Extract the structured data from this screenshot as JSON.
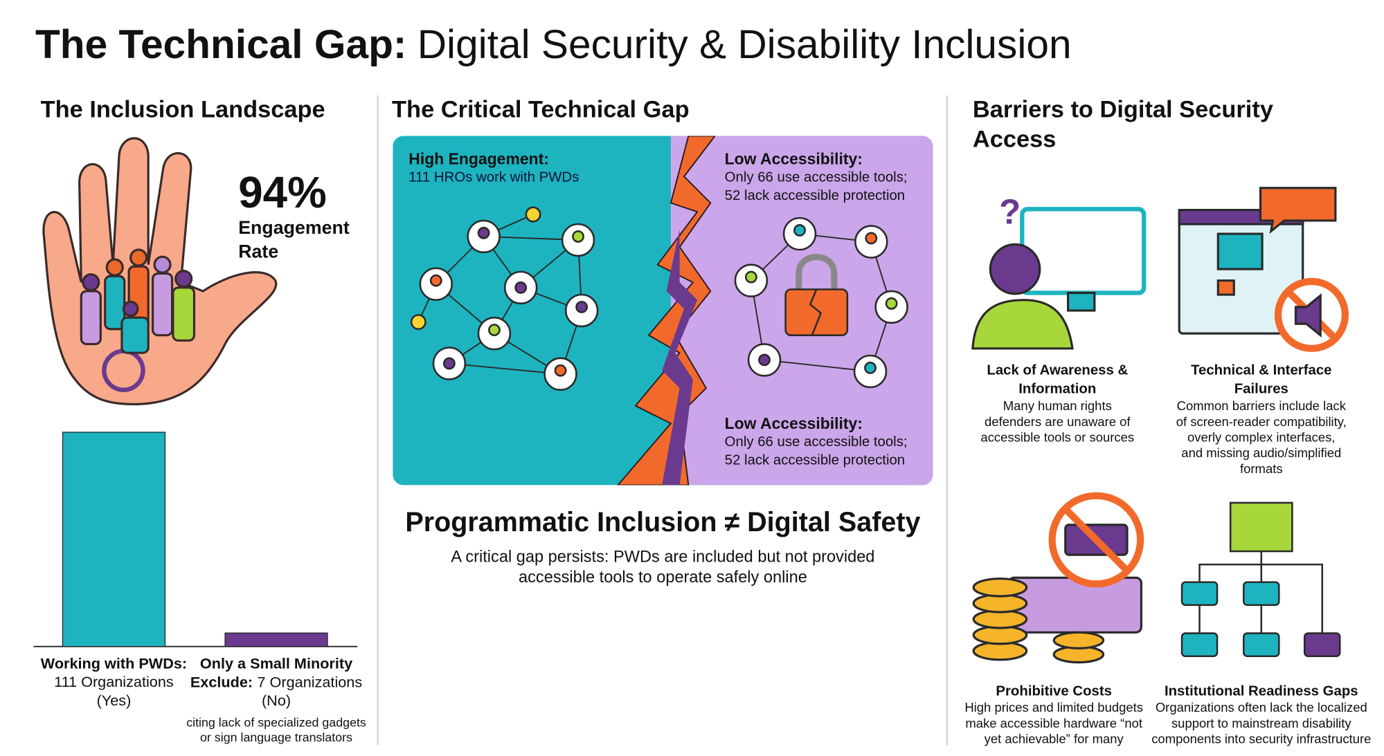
{
  "header": {
    "title_bold": "The Technical Gap:",
    "title_rest": "Digital Security & Disability Inclusion"
  },
  "landscape": {
    "heading": "The Inclusion Landscape",
    "stat": "94%",
    "stat_label": [
      "Engagement",
      "Rate"
    ],
    "chart": {
      "type": "bar",
      "values": [
        111,
        7
      ],
      "value_labels": [
        "111 Organizations",
        "7 Organizations"
      ],
      "colors": [
        "#1db4c0",
        "#6a3a8e"
      ],
      "leads": [
        "Working with PWDs:",
        "Only a Small Minority"
      ],
      "lead_suffix": [
        null,
        "Exclude:"
      ],
      "answers": [
        "(Yes)",
        "(No)"
      ]
    },
    "footnote": [
      "citing lack of specialized gadgets",
      "or sign language translators"
    ]
  },
  "gap": {
    "heading": "The Critical Technical Gap",
    "left": {
      "title": "High Engagement:",
      "lines": [
        "111 HROs work with PWDs"
      ]
    },
    "right": {
      "title": "Low Accessibility:",
      "lines": [
        "Only 66 use accessible tools;",
        "52 lack accessible protection"
      ]
    },
    "right_bottom": {
      "title": "Low Accessibility:",
      "lines": [
        "Only 66 use accessible tools;",
        "52 lack accessible protection"
      ]
    },
    "statement": "Programmatic Inclusion ≠ Digital Safety",
    "statement_sub": [
      "A critical gap persists: PWDs are included but not provided",
      "accessible tools to operate safely online"
    ]
  },
  "barriers": {
    "heading": [
      "Barriers to Digital Security",
      "Access"
    ],
    "items": [
      {
        "title": [
          "Lack of Awareness &",
          "Information"
        ],
        "body": [
          "Many human rights",
          "defenders are unaware of",
          "accessible tools or sources"
        ]
      },
      {
        "title": [
          "Technical & Interface",
          "Failures"
        ],
        "body": [
          "Common barriers include lack",
          "of screen-reader compatibility,",
          "overly complex interfaces,",
          "and missing audio/simplified",
          "formats"
        ]
      },
      {
        "title": [
          "Prohibitive Costs"
        ],
        "body": [
          "High prices and limited budgets",
          "make accessible hardware “not",
          "yet achievable” for many"
        ]
      },
      {
        "title": [
          "Institutional Readiness Gaps"
        ],
        "body": [
          "Organizations often lack the localized",
          "support to mainstream disability",
          "components into security infrastructure"
        ]
      }
    ]
  }
}
